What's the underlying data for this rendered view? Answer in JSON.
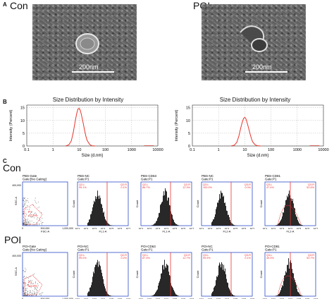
{
  "panels": {
    "a": "A",
    "b": "B",
    "c": "C"
  },
  "tem": {
    "left": {
      "label": "Con",
      "scale": "200nm"
    },
    "right": {
      "label": "POI",
      "scale": "200nm"
    }
  },
  "dls": {
    "title": "Size Distribution by Intensity",
    "ylabel": "Intensity (Percent)",
    "xlabel": "Size (d.nm)",
    "xticks": [
      "0.1",
      "1",
      "10",
      "100",
      "1000",
      "10000"
    ],
    "yticks": [
      "0",
      "5",
      "10",
      "15"
    ]
  },
  "flow": {
    "rows": [
      {
        "label": "Con",
        "scatter": {
          "title": "PBS-Gate",
          "gate": "Gate:[No Gating]",
          "xlabel": "FSC-A",
          "ylabel": "SSC-A",
          "region": "P1",
          "pct": "47.5%"
        },
        "hists": [
          {
            "title": "PBS-NC",
            "gate": "Gate:P1",
            "xlabel": "FL1-A",
            "ul": "Q2-L",
            "ur": "Q2-R",
            "ulv": "99.1%",
            "urv": "0.1%"
          },
          {
            "title": "PBS-CD63",
            "gate": "Gate:P1",
            "xlabel": "FL1-A",
            "ul": "Q2-L",
            "ur": "Q2-R",
            "ulv": "86.7%",
            "urv": "12.3%"
          },
          {
            "title": "PBS-NC",
            "gate": "Gate:P1",
            "xlabel": "FL2-A",
            "ul": "Q3-L",
            "ur": "Q3-R",
            "ulv": "100.0%",
            "urv": "0.0%"
          },
          {
            "title": "PBS-CD81",
            "gate": "Gate:P1",
            "xlabel": "FL2-A",
            "ul": "Q3-L",
            "ur": "Q3-R",
            "ulv": "47.4%",
            "urv": "52.6%"
          }
        ]
      },
      {
        "label": "POI",
        "scatter": {
          "title": "POI-Gate",
          "gate": "Gate:[No Gating]",
          "xlabel": "FSC-A",
          "ylabel": "SSC-A",
          "region": "P1",
          "pct": "64.8%"
        },
        "hists": [
          {
            "title": "POI-NC",
            "gate": "Gate:P1",
            "xlabel": "FL1-A",
            "ul": "Q2-L",
            "ur": "Q2-R",
            "ulv": "99.0%",
            "urv": "0.2%"
          },
          {
            "title": "POI-CD63",
            "gate": "Gate:P1",
            "xlabel": "FL1-A",
            "ul": "Q2-L",
            "ur": "Q2-R",
            "ulv": "87.3%",
            "urv": "12.7%"
          },
          {
            "title": "POI-NC",
            "gate": "Gate:P1",
            "xlabel": "FL2-A",
            "ul": "Q3-L",
            "ur": "Q3-R",
            "ulv": "99.9%",
            "urv": "0.1%"
          },
          {
            "title": "POI-CD81",
            "gate": "Gate:P1",
            "xlabel": "FL2-A",
            "ul": "Q3-L",
            "ur": "Q3-R",
            "ulv": "49.3%",
            "urv": "50.7%"
          }
        ]
      }
    ],
    "scatter_ticks": [
      "0",
      "500,000",
      "1,000,000"
    ],
    "scatter_ytick_top": "400,000",
    "hist_xticks": [
      "10^1",
      "10^2",
      "10^3",
      "10^4",
      "10^5",
      "10^6",
      "10^7"
    ],
    "count_label": "Count"
  },
  "chart_data": [
    {
      "type": "line",
      "title": "Size Distribution by Intensity",
      "xlabel": "Size (d.nm)",
      "ylabel": "Intensity (Percent)",
      "xscale": "log",
      "xlim": [
        0.1,
        10000
      ],
      "ylim": [
        0,
        16
      ],
      "grid": true,
      "series": [
        {
          "x": [
            3,
            4,
            5,
            6,
            7,
            8,
            9,
            10,
            11,
            12,
            14,
            16,
            18,
            20,
            25,
            30,
            40
          ],
          "values": [
            0,
            0.4,
            2.0,
            5.5,
            9.5,
            12.6,
            14.5,
            14.7,
            14.0,
            12.5,
            9.3,
            6.2,
            3.8,
            2.2,
            0.6,
            0.1,
            0
          ]
        }
      ]
    },
    {
      "type": "line",
      "title": "Size Distribution by Intensity",
      "xlabel": "Size (d.nm)",
      "ylabel": "Intensity (Percent)",
      "xscale": "log",
      "xlim": [
        0.1,
        10000
      ],
      "ylim": [
        0,
        16
      ],
      "grid": true,
      "series": [
        {
          "x": [
            3,
            4,
            5,
            6,
            7,
            8,
            9,
            10,
            11,
            12,
            14,
            16,
            18,
            20,
            25,
            30,
            40
          ],
          "values": [
            0,
            0.3,
            1.5,
            4.0,
            7.0,
            9.3,
            10.8,
            11.2,
            10.7,
            9.5,
            7.0,
            4.6,
            2.8,
            1.6,
            0.4,
            0.1,
            0
          ]
        }
      ]
    }
  ]
}
